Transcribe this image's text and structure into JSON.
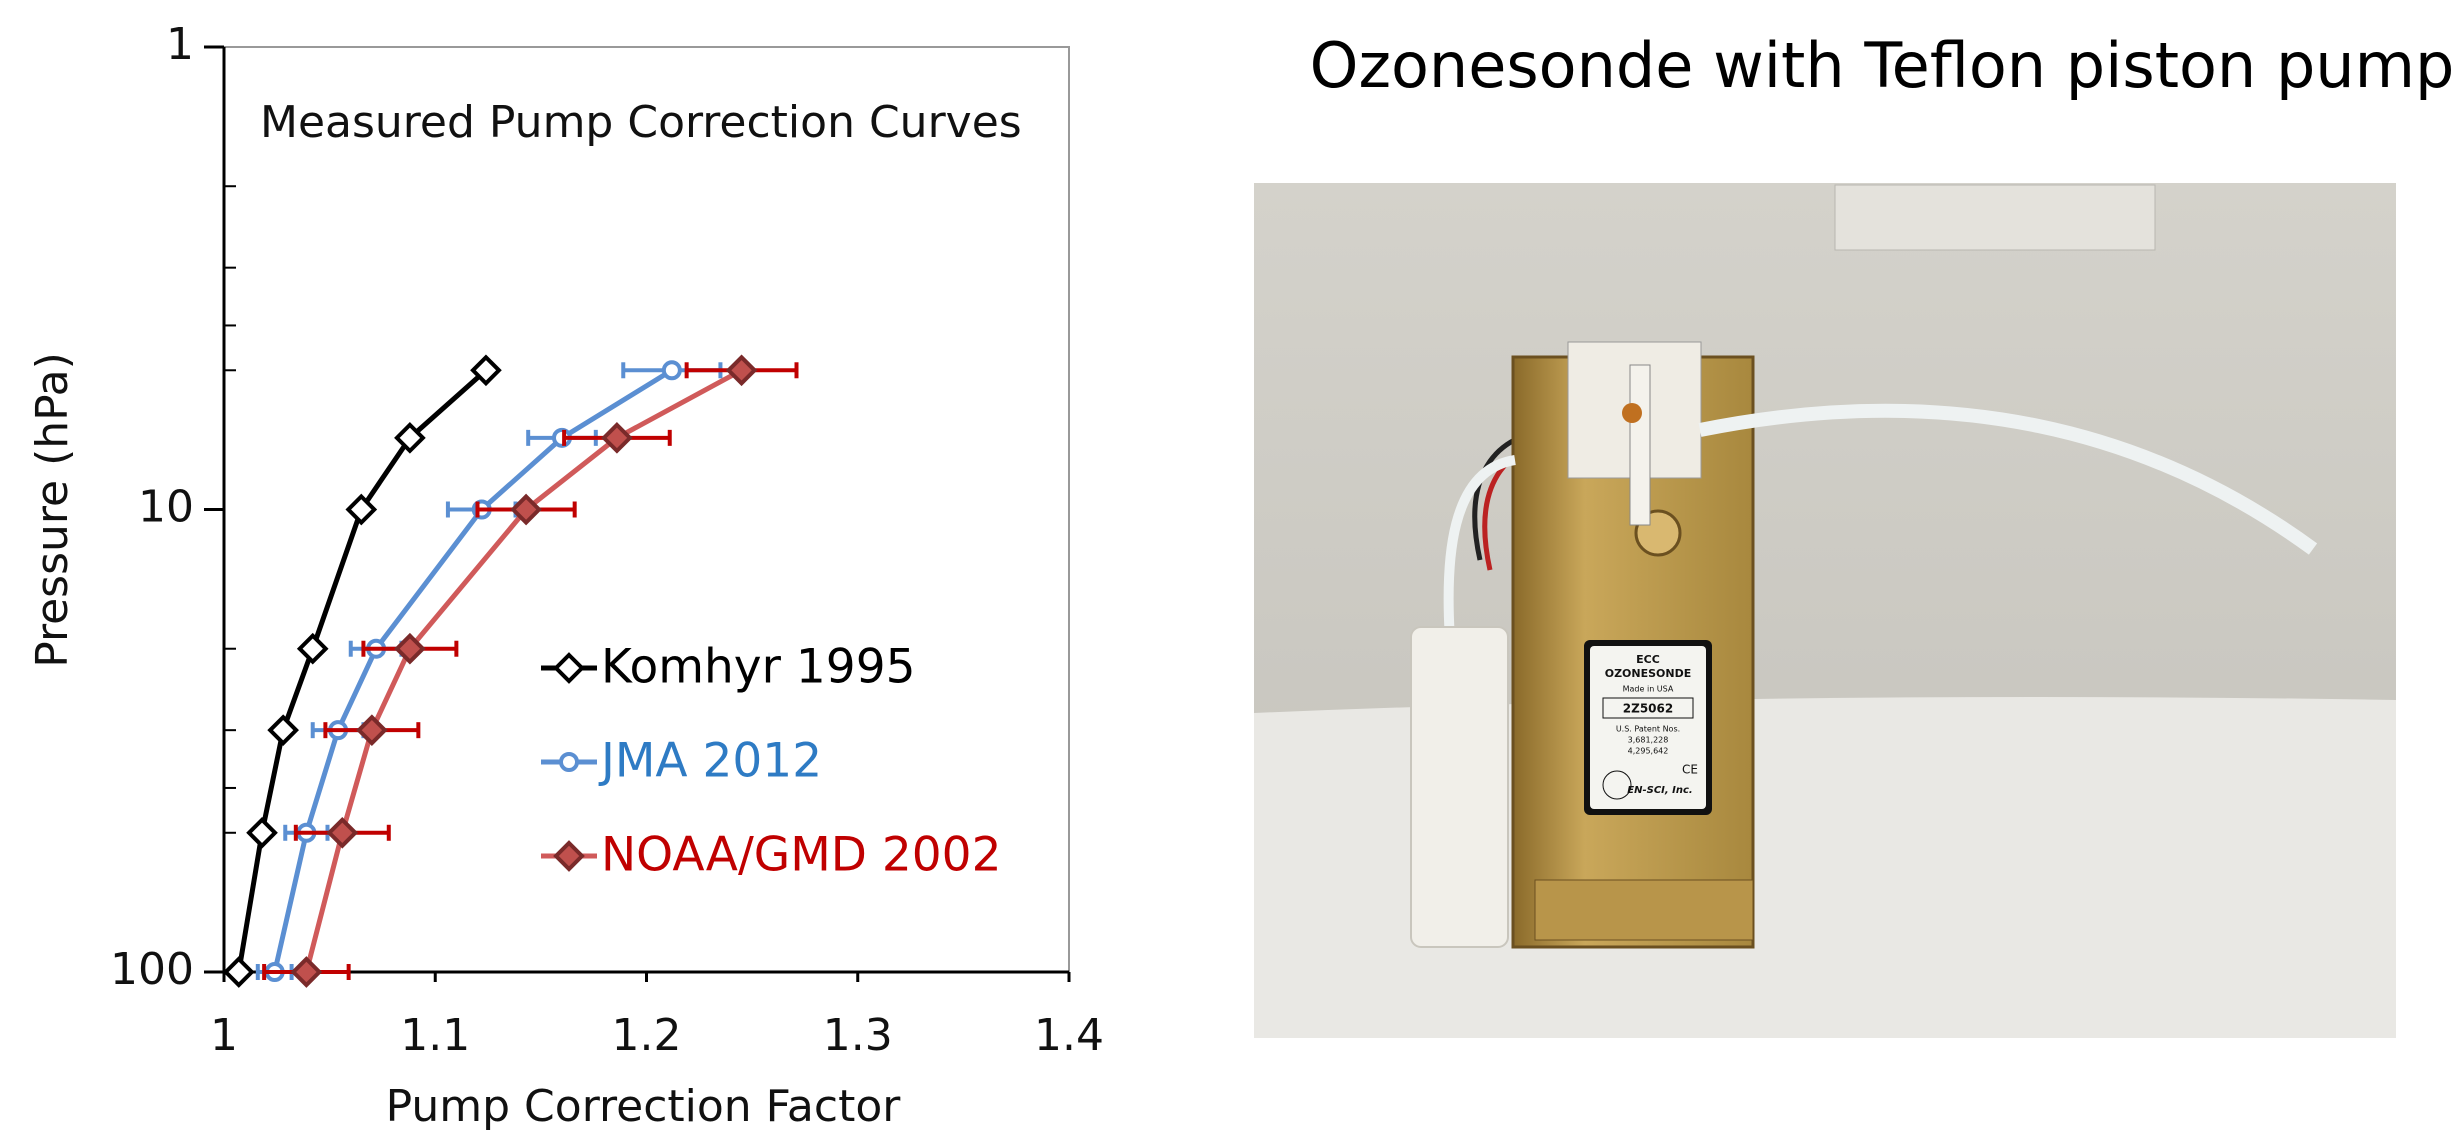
{
  "chart_data": {
    "type": "line",
    "title": "Measured Pump Correction Curves",
    "x_label": "Pump Correction Factor",
    "y_label": "Pressure (hPa)",
    "y": [
      100,
      50,
      30,
      20,
      10,
      7,
      5
    ],
    "series": [
      {
        "name": "Komhyr 1995",
        "color": "#000000",
        "marker": "diamond",
        "marker_fill": "#ffffff",
        "legend_color": "#000000",
        "x": [
          1.007,
          1.018,
          1.028,
          1.042,
          1.065,
          1.088,
          1.124
        ]
      },
      {
        "name": "JMA 2012",
        "color": "#5b8fd2",
        "marker": "circle",
        "marker_fill": "#ffffff",
        "legend_color": "#2e7bc4",
        "error_color": "#5b8fd2",
        "x": [
          1.024,
          1.039,
          1.054,
          1.072,
          1.122,
          1.16,
          1.212
        ],
        "xerr": [
          0.008,
          0.01,
          0.012,
          0.012,
          0.016,
          0.016,
          0.023
        ]
      },
      {
        "name": "NOAA/GMD 2002",
        "color": "#d05a5a",
        "marker": "diamond",
        "marker_fill": "#c0504d",
        "legend_color": "#c00000",
        "error_color": "#c00000",
        "x": [
          1.039,
          1.056,
          1.07,
          1.088,
          1.143,
          1.186,
          1.245
        ],
        "xerr": [
          0.02,
          0.022,
          0.022,
          0.022,
          0.023,
          0.025,
          0.026
        ]
      }
    ],
    "xlim": [
      1,
      1.4
    ],
    "xticks": [
      1,
      1.1,
      1.2,
      1.3,
      1.4
    ],
    "ylim": [
      1,
      100
    ],
    "yticks": [
      1,
      10,
      100
    ],
    "yminorticks": [
      2,
      3,
      4,
      5,
      20,
      30,
      40,
      50
    ],
    "y_log": true,
    "y_reversed": true,
    "grid": false
  },
  "photo": {
    "title": "Ozonesonde with Teflon piston pump",
    "label": [
      "ECC",
      "OZONESONDE",
      "Made in USA",
      "2Z5062",
      "U.S. Patent Nos.",
      "3,681,228",
      "4,295,642",
      "EN-SCI, Inc.",
      "CE"
    ]
  }
}
